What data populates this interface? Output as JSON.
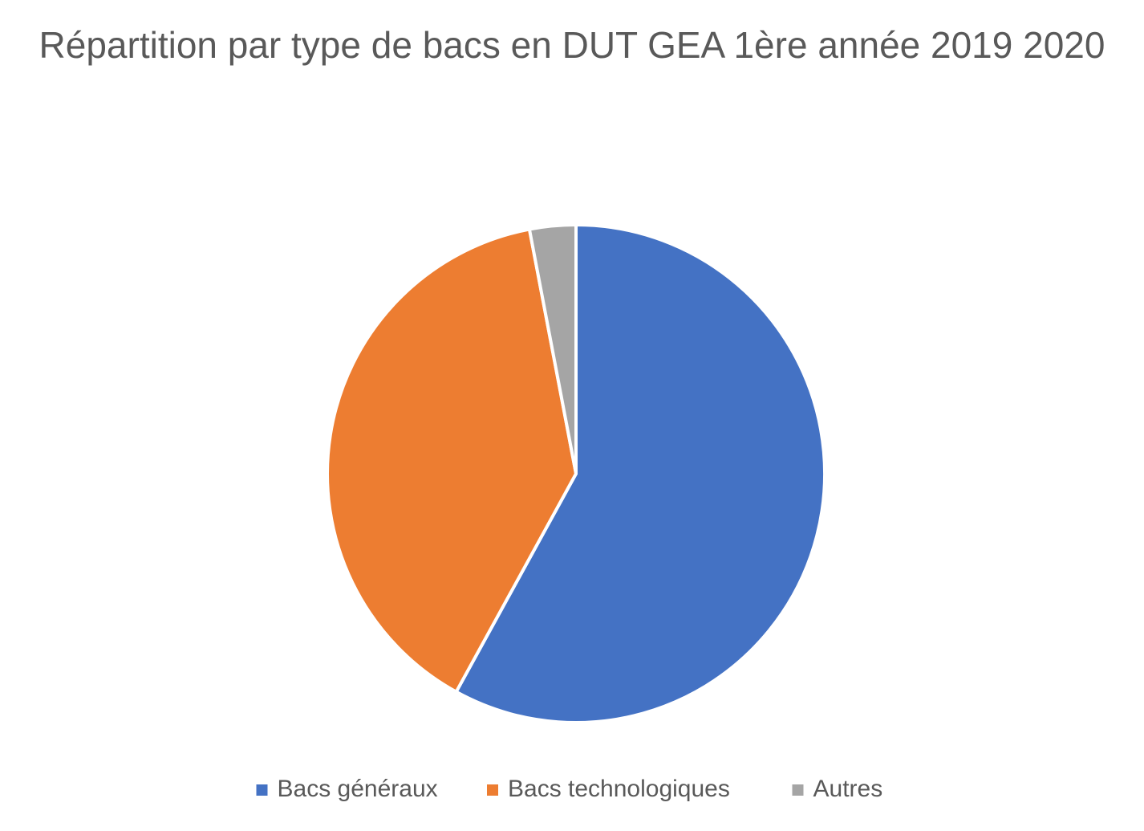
{
  "chart_data": {
    "type": "pie",
    "title": "Répartition par type de bacs en DUT GEA 1ère année 2019 2020",
    "categories": [
      "Bacs généraux",
      "Bacs technologiques",
      "Autres"
    ],
    "values": [
      58,
      39,
      3
    ],
    "colors": [
      "#4472c4",
      "#ed7d31",
      "#a5a5a5"
    ],
    "legend": "bottom"
  }
}
